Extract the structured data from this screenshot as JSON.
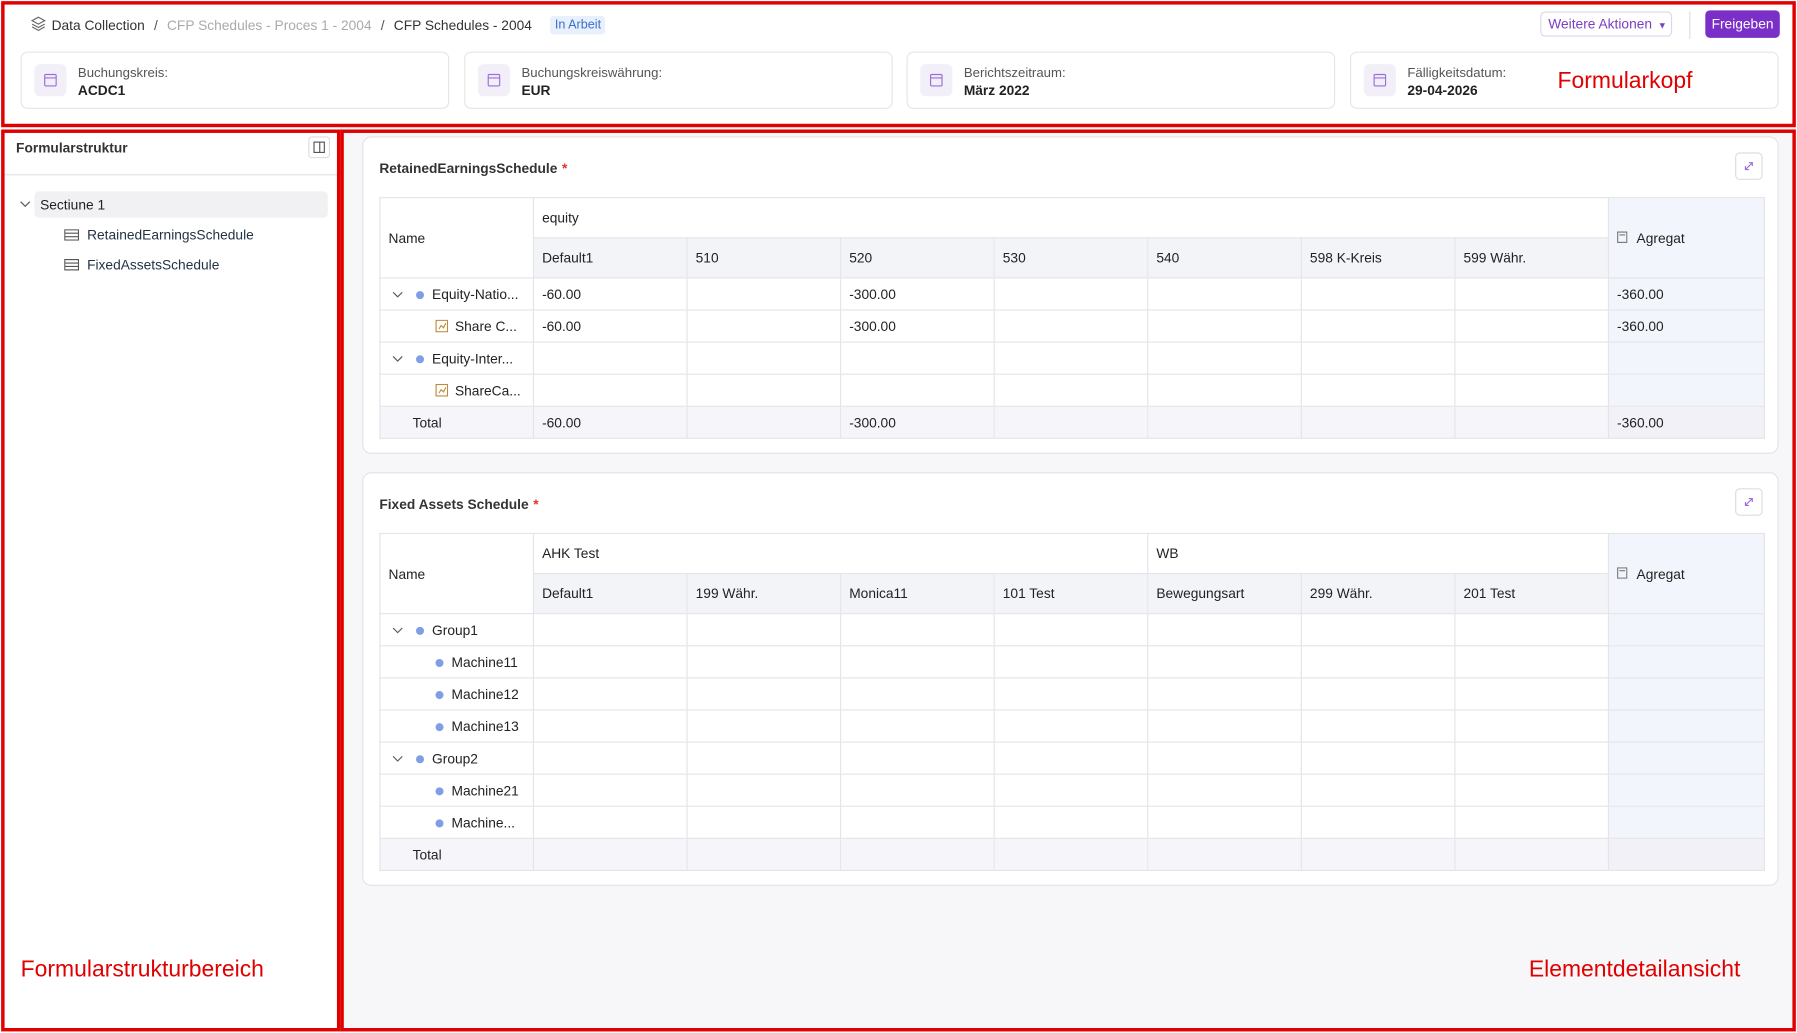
{
  "header": {
    "breadcrumb": [
      "Data Collection",
      "CFP Schedules - Proces 1 - 2004",
      "CFP Schedules - 2004"
    ],
    "breadcrumb_separator": "/",
    "status": "In Arbeit",
    "actions": [
      "Weitere Aktionen",
      "Freigeben"
    ],
    "info_cards": [
      {
        "label": "Buchungskreis:",
        "value": "ACDC1"
      },
      {
        "label": "Buchungskreiswährung:",
        "value": "EUR"
      },
      {
        "label": "Berichtszeitraum:",
        "value": "März 2022"
      },
      {
        "label": "Fälligkeitsdatum:",
        "value": "29-04-2026"
      }
    ]
  },
  "annotations": {
    "header": "Formularkopf",
    "sidebar": "Formularstrukturbereich",
    "detail": "Elementdetailansicht"
  },
  "sidebar": {
    "title": "Formularstruktur",
    "section": "Sectiune 1",
    "items": [
      "RetainedEarningsSchedule",
      "FixedAssetsSchedule"
    ]
  },
  "schedules": [
    {
      "title": "RetainedEarningsSchedule",
      "required": "*",
      "name_header": "Name",
      "aggregate_header": "Agregat",
      "groups": [
        {
          "label": "equity",
          "columns": [
            "Default1",
            "510",
            "520",
            "530",
            "540",
            "598 K-Kreis",
            "599 Währ."
          ]
        }
      ],
      "rows": [
        {
          "label": "Equity-Natio...",
          "kind": "group",
          "values": [
            "-60.00",
            null,
            "-300.00",
            null,
            null,
            null,
            null
          ],
          "aggregate": "-360.00"
        },
        {
          "label": "Share C...",
          "kind": "icon",
          "values": [
            "-60.00",
            null,
            "-300.00",
            null,
            null,
            null,
            null
          ],
          "aggregate": "-360.00"
        },
        {
          "label": "Equity-Inter...",
          "kind": "group",
          "values": [
            null,
            null,
            null,
            null,
            null,
            null,
            null
          ],
          "aggregate": null
        },
        {
          "label": "ShareCa...",
          "kind": "icon",
          "values": [
            null,
            null,
            null,
            null,
            null,
            null,
            null
          ],
          "aggregate": null
        }
      ],
      "total": {
        "label": "Total",
        "values": [
          "-60.00",
          null,
          "-300.00",
          null,
          null,
          null,
          null
        ],
        "aggregate": "-360.00"
      }
    },
    {
      "title": "Fixed Assets Schedule",
      "required": "*",
      "name_header": "Name",
      "aggregate_header": "Agregat",
      "groups": [
        {
          "label": "AHK Test",
          "columns": [
            "Default1",
            "199 Währ.",
            "Monica11",
            "101 Test"
          ]
        },
        {
          "label": "WB",
          "columns": [
            "Bewegungsart",
            "299 Währ.",
            "201 Test"
          ]
        }
      ],
      "rows": [
        {
          "label": "Group1",
          "kind": "group",
          "values": [
            null,
            null,
            null,
            null,
            null,
            null,
            null
          ],
          "aggregate": null
        },
        {
          "label": "Machine11",
          "kind": "dot",
          "values": [
            null,
            null,
            null,
            null,
            null,
            null,
            null
          ],
          "aggregate": null
        },
        {
          "label": "Machine12",
          "kind": "dot",
          "values": [
            null,
            null,
            null,
            null,
            null,
            null,
            null
          ],
          "aggregate": null
        },
        {
          "label": "Machine13",
          "kind": "dot",
          "values": [
            null,
            null,
            null,
            null,
            null,
            null,
            null
          ],
          "aggregate": null
        },
        {
          "label": "Group2",
          "kind": "group",
          "values": [
            null,
            null,
            null,
            null,
            null,
            null,
            null
          ],
          "aggregate": null
        },
        {
          "label": "Machine21",
          "kind": "dot",
          "values": [
            null,
            null,
            null,
            null,
            null,
            null,
            null
          ],
          "aggregate": null
        },
        {
          "label": "Machine...",
          "kind": "dot",
          "values": [
            null,
            null,
            null,
            null,
            null,
            null,
            null
          ],
          "aggregate": null
        }
      ],
      "total": {
        "label": "Total",
        "values": [
          null,
          null,
          null,
          null,
          null,
          null,
          null
        ],
        "aggregate": null
      }
    }
  ]
}
